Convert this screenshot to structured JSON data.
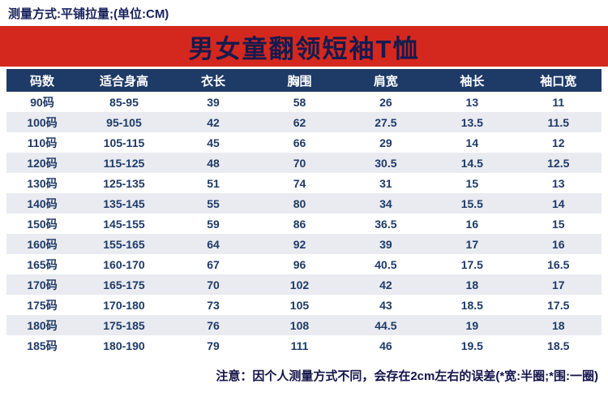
{
  "top_bar": {
    "text": "测量方式:平铺拉量;(单位:CM)"
  },
  "banner": {
    "title": "男女童翻领短袖T恤"
  },
  "colors": {
    "banner_bg": "#d4281e",
    "header_bg": "#1e3a67",
    "row_alt_bg": "#e9ebf1",
    "body_text_navy": "#1e3a67",
    "title_navy": "#171a4e"
  },
  "chart_data": {
    "type": "table",
    "title": "男女童翻领短袖T恤",
    "measure_note": "测量方式:平铺拉量;(单位:CM)",
    "headers": [
      "码数",
      "适合身高",
      "衣长",
      "胸围",
      "肩宽",
      "袖长",
      "袖口宽"
    ],
    "rows": [
      [
        "90码",
        "85-95",
        "39",
        "58",
        "26",
        "13",
        "11"
      ],
      [
        "100码",
        "95-105",
        "42",
        "62",
        "27.5",
        "13.5",
        "11.5"
      ],
      [
        "110码",
        "105-115",
        "45",
        "66",
        "29",
        "14",
        "12"
      ],
      [
        "120码",
        "115-125",
        "48",
        "70",
        "30.5",
        "14.5",
        "12.5"
      ],
      [
        "130码",
        "125-135",
        "51",
        "74",
        "31",
        "15",
        "13"
      ],
      [
        "140码",
        "135-145",
        "55",
        "80",
        "34",
        "15.5",
        "14"
      ],
      [
        "150码",
        "145-155",
        "59",
        "86",
        "36.5",
        "16",
        "15"
      ],
      [
        "160码",
        "155-165",
        "64",
        "92",
        "39",
        "17",
        "16"
      ],
      [
        "165码",
        "160-170",
        "67",
        "96",
        "40.5",
        "17.5",
        "16.5"
      ],
      [
        "170码",
        "165-175",
        "70",
        "102",
        "42",
        "18",
        "17"
      ],
      [
        "175码",
        "170-180",
        "73",
        "105",
        "43",
        "18.5",
        "17.5"
      ],
      [
        "180码",
        "175-185",
        "76",
        "108",
        "44.5",
        "19",
        "18"
      ],
      [
        "185码",
        "180-190",
        "79",
        "111",
        "46",
        "19.5",
        "18.5"
      ]
    ]
  },
  "footer": {
    "note": "注意：因个人测量方式不同，会存在2cm左右的误差(*宽:半圈;*围:一圈)"
  }
}
